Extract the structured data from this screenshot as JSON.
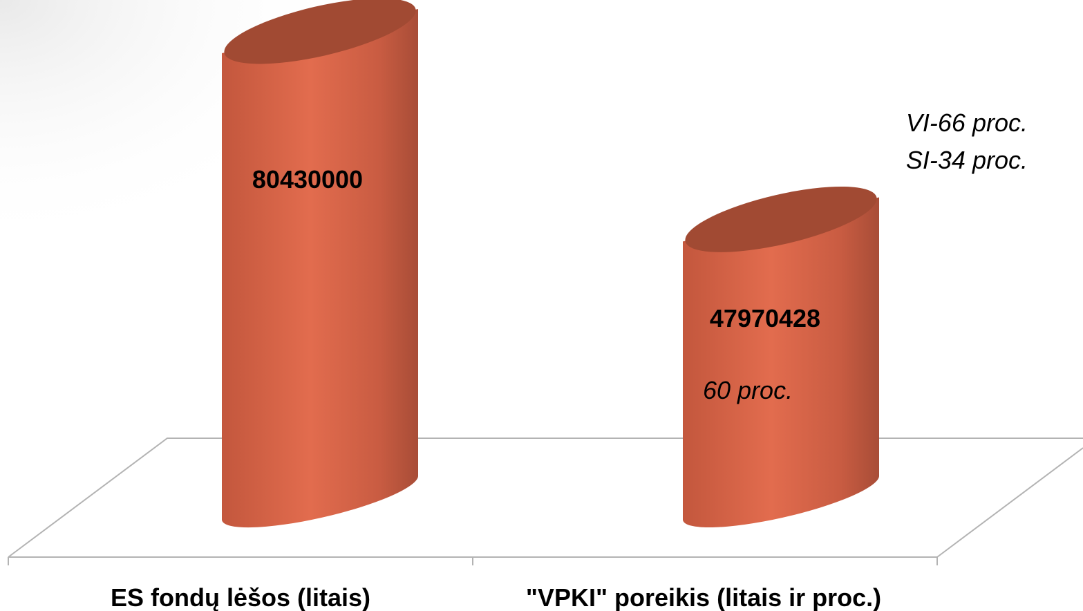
{
  "chart_data": {
    "type": "bar",
    "style": "3d-cylinder",
    "categories": [
      "ES fondų  lėšos (litais)",
      "\"VPKI\" poreikis (litais ir proc.)"
    ],
    "values": [
      80430000,
      47970428
    ],
    "data_labels": [
      "80430000",
      "47970428"
    ],
    "bar_notes": [
      "",
      "60 proc."
    ],
    "side_note": [
      "VI-66 proc.",
      "SI-34 proc."
    ],
    "ylim": [
      0,
      80430000
    ],
    "grid": false,
    "legend": "none",
    "colors": {
      "bar_mid": "#e06a4c",
      "bar_dark": "#a24c36",
      "bar_light": "#c85a40",
      "top_face": "#a14a33",
      "floor_line": "#b3b3b3",
      "text": "#000000"
    }
  }
}
